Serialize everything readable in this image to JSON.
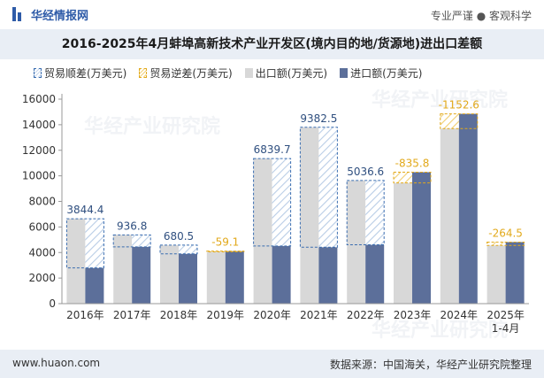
{
  "header": {
    "brand": "华经情报网",
    "slogan": "专业严谨 ● 客观科学"
  },
  "watermarks": [
    "华经产业研究院",
    "华经产业研究院",
    "华经产业研究院"
  ],
  "chart_data": {
    "type": "bar",
    "title": "2016-2025年4月蚌埠高新技术产业开发区(境内目的地/货源地)进出口差额",
    "legend": {
      "placement": "top-left",
      "entries": [
        "贸易顺差(万美元)",
        "贸易逆差(万美元)",
        "出口额(万美元)",
        "进口额(万美元)"
      ]
    },
    "categories": [
      "2016年",
      "2017年",
      "2018年",
      "2019年",
      "2020年",
      "2021年",
      "2022年",
      "2023年",
      "2024年",
      "2025年\n1-4月"
    ],
    "series": [
      {
        "name": "出口额(万美元)",
        "color": "#d8d8d8",
        "values": [
          6640,
          5380,
          4580,
          4050,
          11350,
          13800,
          9640,
          9450,
          13700,
          4550
        ]
      },
      {
        "name": "进口额(万美元)",
        "color": "#5c6f9a",
        "values": [
          2795.6,
          4443.2,
          3899.5,
          4109.1,
          4510.3,
          4417.5,
          4603.4,
          10285.8,
          14852.6,
          4814.5
        ]
      }
    ],
    "balance": {
      "labels": [
        "3844.4",
        "936.8",
        "680.5",
        "-59.1",
        "6839.7",
        "9382.5",
        "5036.6",
        "-835.8",
        "-1152.6",
        "-264.5"
      ],
      "values": [
        3844.4,
        936.8,
        680.5,
        -59.1,
        6839.7,
        9382.5,
        5036.6,
        -835.8,
        -1152.6,
        -264.5
      ],
      "surplus_color": "#3a6db0",
      "deficit_color": "#e2a91b"
    },
    "yticks": [
      "0",
      "2000",
      "4000",
      "6000",
      "8000",
      "10000",
      "12000",
      "14000",
      "16000"
    ],
    "ylim": [
      0,
      16000
    ],
    "grid": false
  },
  "footer": {
    "website": "www.huaon.com",
    "source": "数据来源：中国海关，华经产业研究院整理"
  }
}
